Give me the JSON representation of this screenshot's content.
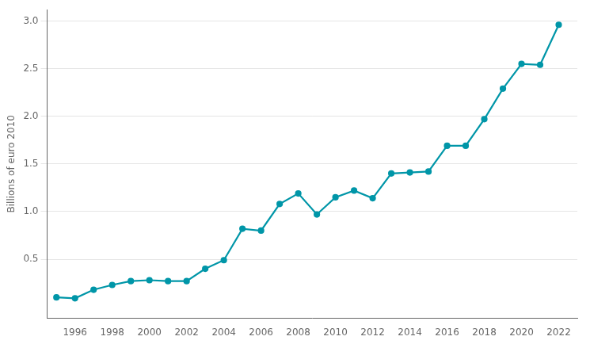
{
  "chart_data": {
    "type": "line",
    "ylabel": "Billions of euro 2010",
    "x": [
      1995,
      1996,
      1997,
      1998,
      1999,
      2000,
      2001,
      2002,
      2003,
      2004,
      2005,
      2006,
      2007,
      2008,
      2009,
      2010,
      2011,
      2012,
      2013,
      2014,
      2015,
      2016,
      2017,
      2018,
      2019,
      2020,
      2021,
      2022
    ],
    "values": [
      0.1,
      0.09,
      0.18,
      0.23,
      0.27,
      0.28,
      0.27,
      0.27,
      0.4,
      0.49,
      0.82,
      0.8,
      1.08,
      1.19,
      0.97,
      1.15,
      1.22,
      1.14,
      1.4,
      1.41,
      1.42,
      1.69,
      1.69,
      1.97,
      2.29,
      2.55,
      2.54,
      2.96
    ],
    "color": "#0096A8",
    "marker": "circle",
    "xlim": [
      1994.5,
      2023.0
    ],
    "xticks": [
      1996,
      1998,
      2000,
      2002,
      2004,
      2006,
      2008,
      2010,
      2012,
      2014,
      2016,
      2018,
      2020,
      2022
    ],
    "ylim": [
      -0.12,
      3.12
    ],
    "yticks": [
      0.5,
      {
        "value": 1.0,
        "label": "1.0"
      },
      1.5,
      {
        "value": 2.0,
        "label": "2.0"
      },
      2.5,
      {
        "value": 3.0,
        "label": "3.0"
      }
    ],
    "grid": "y"
  }
}
